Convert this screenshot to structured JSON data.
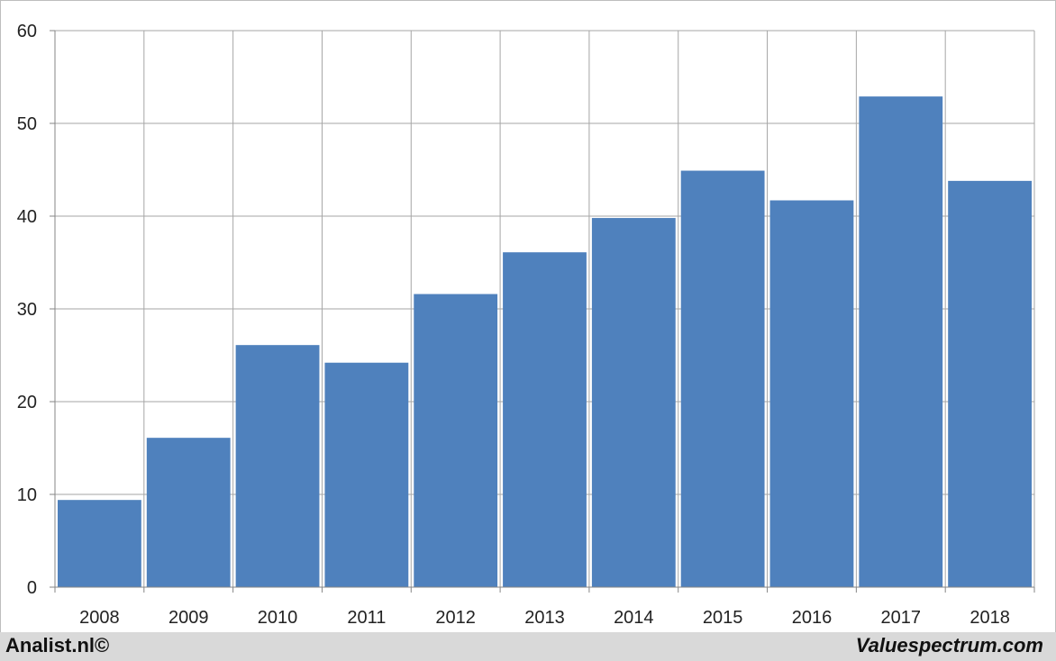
{
  "chart_data": {
    "type": "bar",
    "categories": [
      "2008",
      "2009",
      "2010",
      "2011",
      "2012",
      "2013",
      "2014",
      "2015",
      "2016",
      "2017",
      "2018"
    ],
    "values": [
      9.4,
      16.1,
      26.1,
      24.2,
      31.6,
      36.1,
      39.8,
      44.9,
      41.7,
      52.9,
      43.8
    ],
    "title": "",
    "xlabel": "",
    "ylabel": "",
    "ylim": [
      0,
      60
    ],
    "yticks": [
      "0",
      "10",
      "20",
      "30",
      "40",
      "50",
      "60"
    ],
    "grid": true,
    "legend": "none",
    "bar_color": "#4f81bd",
    "grid_color": "#a6a6a6"
  },
  "footer": {
    "left": "Analist.nl©",
    "right": "Valuespectrum.com"
  }
}
